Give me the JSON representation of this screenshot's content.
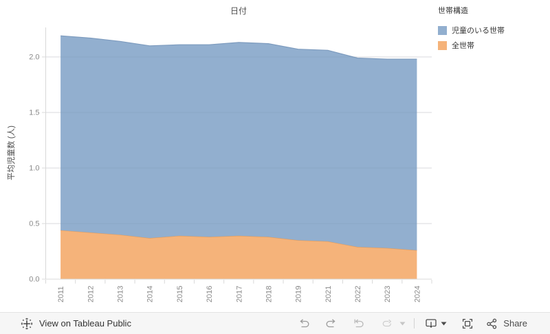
{
  "chart": {
    "title": "日付",
    "y_axis_title": "平均児童数 (人)",
    "legend": {
      "title": "世帯構造",
      "items": [
        {
          "label": "児童のいる世帯",
          "color": "#92AFCF"
        },
        {
          "label": "全世帯",
          "color": "#F5B37A"
        }
      ]
    }
  },
  "chart_data": {
    "type": "area",
    "stacked": true,
    "title": "日付",
    "xlabel": "日付",
    "ylabel": "平均児童数 (人)",
    "x": [
      "2011",
      "2012",
      "2013",
      "2014",
      "2015",
      "2016",
      "2017",
      "2018",
      "2019",
      "2021",
      "2022",
      "2023",
      "2024"
    ],
    "series": [
      {
        "id": "all-households",
        "name": "全世帯",
        "color": "#F5B37A",
        "line_color": "#DE9C5F",
        "values": [
          0.44,
          0.42,
          0.4,
          0.37,
          0.39,
          0.38,
          0.39,
          0.38,
          0.35,
          0.34,
          0.29,
          0.28,
          0.26
        ]
      },
      {
        "id": "households-with-children",
        "name": "児童のいる世帯",
        "color": "#92AFCF",
        "line_color": "#7D9BBE",
        "values": [
          1.75,
          1.75,
          1.74,
          1.73,
          1.72,
          1.73,
          1.74,
          1.74,
          1.72,
          1.72,
          1.7,
          1.7,
          1.72
        ]
      }
    ],
    "stack_totals": [
      2.19,
      2.17,
      2.14,
      2.1,
      2.11,
      2.11,
      2.13,
      2.12,
      2.07,
      2.06,
      1.99,
      1.98,
      1.98
    ],
    "yticks": [
      0,
      0.5,
      1.0,
      1.5,
      2.0
    ],
    "ylim": [
      0,
      2.27
    ],
    "grid": "horizontal",
    "legend_position": "top-right",
    "colors": {
      "grid": "#e8e8e8",
      "axis": "#d8d8d8",
      "tick_label": "#8a8a8a"
    }
  },
  "toolbar": {
    "view_label": "View on Tableau Public",
    "share_label": "Share",
    "icons": [
      "tableau-logo",
      "undo",
      "redo",
      "revert",
      "refresh",
      "download",
      "fullscreen",
      "share"
    ]
  }
}
